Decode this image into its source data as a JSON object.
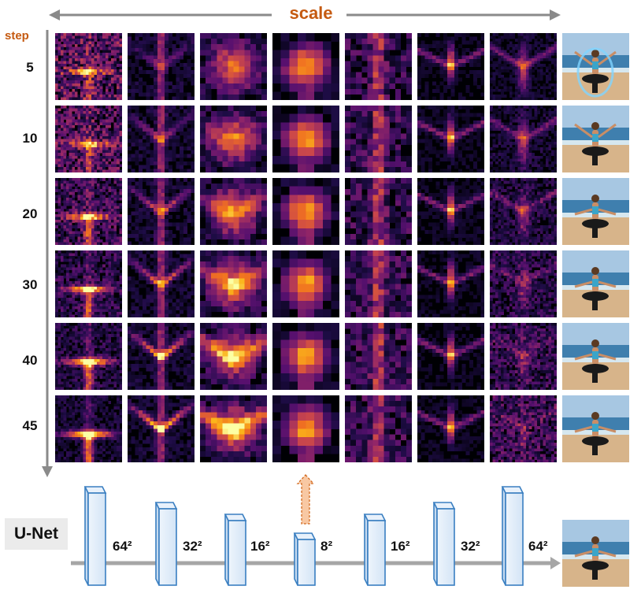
{
  "header": {
    "scale_label": "scale",
    "step_label": "step"
  },
  "steps": [
    "5",
    "10",
    "20",
    "30",
    "40",
    "45"
  ],
  "unet": {
    "label": "U-Net",
    "layers": [
      {
        "label": "64²"
      },
      {
        "label": "32²"
      },
      {
        "label": "16²"
      },
      {
        "label": "8²"
      },
      {
        "label": "16²"
      },
      {
        "label": "32²"
      },
      {
        "label": "64²"
      }
    ]
  },
  "colors": {
    "accent": "#c55a11",
    "arrow": "#8a8a8a",
    "block_fill": "#ddeaf8",
    "block_stroke": "#3a7fc1",
    "highlight_arrow": "#f5c09a"
  }
}
